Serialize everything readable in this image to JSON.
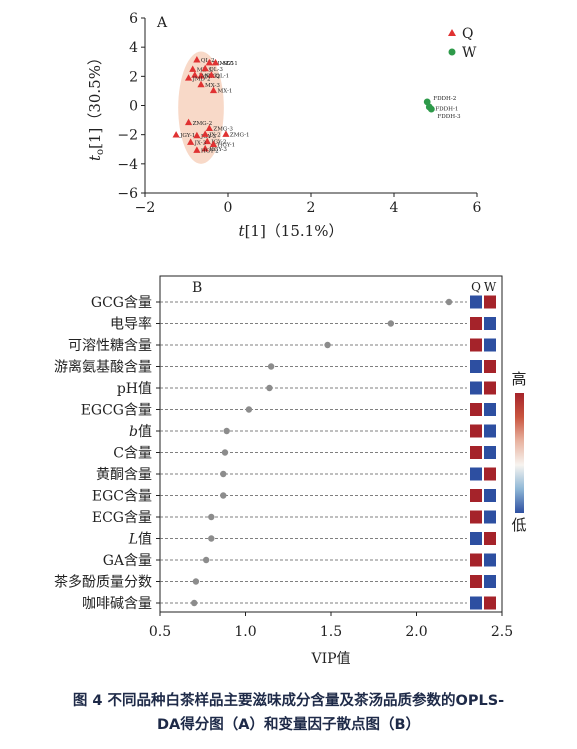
{
  "chart_data": [
    {
      "panel_label": "A",
      "type": "scatter",
      "xlabel_var": "t",
      "xlabel_idx": "[1]",
      "xlabel_pct": "（15.1%）",
      "ylabel_var": "t",
      "ylabel_sub": "o",
      "ylabel_idx": "[1]",
      "ylabel_pct": "（30.5%）",
      "xlim": [
        -2,
        6
      ],
      "ylim": [
        -6,
        6
      ],
      "xticks": [
        -2,
        0,
        2,
        4,
        6
      ],
      "yticks": [
        -6,
        -4,
        -2,
        0,
        2,
        4,
        6
      ],
      "ellipse": {
        "cx": -0.65,
        "cy": -0.15,
        "rx": 0.55,
        "ry": 3.85
      },
      "legend_position": "top-right",
      "series": [
        {
          "name": "Q",
          "color": "#e03232",
          "marker": "triangle",
          "points": [
            {
              "x": -0.75,
              "y": 3.15,
              "label": "QL-2"
            },
            {
              "x": -0.45,
              "y": 2.95,
              "label": "ZL-MZ-1"
            },
            {
              "x": -0.3,
              "y": 2.95,
              "label": "MZ-1"
            },
            {
              "x": -0.85,
              "y": 2.5,
              "label": "MZ-3"
            },
            {
              "x": -0.55,
              "y": 2.55,
              "label": "QL-3"
            },
            {
              "x": -0.8,
              "y": 2.1,
              "label": "JMD-3"
            },
            {
              "x": -0.65,
              "y": 2.05,
              "label": "MX-2"
            },
            {
              "x": -0.4,
              "y": 2.1,
              "label": "QL-1"
            },
            {
              "x": -0.95,
              "y": 1.9,
              "label": "JMD-2"
            },
            {
              "x": -0.65,
              "y": 1.45,
              "label": "MX-3"
            },
            {
              "x": -0.35,
              "y": 1.05,
              "label": "MX-1"
            },
            {
              "x": -0.95,
              "y": -1.15,
              "label": "ZMG-2"
            },
            {
              "x": -0.45,
              "y": -1.55,
              "label": "ZMG-3"
            },
            {
              "x": -0.05,
              "y": -1.95,
              "label": "ZMG-1"
            },
            {
              "x": -1.25,
              "y": -2.0,
              "label": "JGY-1"
            },
            {
              "x": -0.75,
              "y": -2.05,
              "label": "JGY-3"
            },
            {
              "x": -0.55,
              "y": -1.95,
              "label": "JX-2"
            },
            {
              "x": -0.5,
              "y": -2.45,
              "label": "JGY-2"
            },
            {
              "x": -0.9,
              "y": -2.5,
              "label": "JX-3"
            },
            {
              "x": -0.35,
              "y": -2.65,
              "label": "HGY-1"
            },
            {
              "x": -0.55,
              "y": -2.95,
              "label": "HGY-3"
            },
            {
              "x": -0.75,
              "y": -3.05,
              "label": "HGY-2"
            }
          ]
        },
        {
          "name": "W",
          "color": "#2e9a4a",
          "marker": "circle",
          "points": [
            {
              "x": 4.8,
              "y": 0.25,
              "label": "FDDH-2"
            },
            {
              "x": 4.85,
              "y": -0.1,
              "label": "FDDH-1"
            },
            {
              "x": 4.9,
              "y": -0.25,
              "label": "FDDH-3"
            }
          ]
        }
      ]
    },
    {
      "panel_label": "B",
      "type": "dot",
      "xlabel": "VIP值",
      "xlim": [
        0.5,
        2.5
      ],
      "xticks": [
        0.5,
        1.0,
        1.5,
        2.0,
        2.5
      ],
      "marker_color": "#8c8c8c",
      "heat_columns": [
        "Q",
        "W"
      ],
      "legend_high": "高",
      "legend_low": "低",
      "heat_colors": {
        "low": "#2d4fa1",
        "high": "#a5232a"
      },
      "gradient": [
        "#a5232a",
        "#c9553f",
        "#e8b3a0",
        "#f7f4f0",
        "#8fb7d6",
        "#2d4fa1"
      ],
      "items": [
        {
          "label": "GCG含量",
          "vip": 2.19,
          "heat": [
            "low",
            "high"
          ]
        },
        {
          "label": "电导率",
          "vip": 1.85,
          "heat": [
            "high",
            "low"
          ]
        },
        {
          "label": "可溶性糖含量",
          "vip": 1.48,
          "heat": [
            "high",
            "low"
          ]
        },
        {
          "label": "游离氨基酸含量",
          "vip": 1.15,
          "heat": [
            "low",
            "high"
          ]
        },
        {
          "label": "pH值",
          "vip": 1.14,
          "heat": [
            "low",
            "high"
          ]
        },
        {
          "label": "EGCG含量",
          "vip": 1.02,
          "heat": [
            "high",
            "low"
          ]
        },
        {
          "label": "b值",
          "label_italic": "b",
          "label_rest": "值",
          "vip": 0.89,
          "heat": [
            "high",
            "low"
          ]
        },
        {
          "label": "C含量",
          "vip": 0.88,
          "heat": [
            "high",
            "low"
          ]
        },
        {
          "label": "黄酮含量",
          "vip": 0.87,
          "heat": [
            "low",
            "high"
          ]
        },
        {
          "label": "EGC含量",
          "vip": 0.87,
          "heat": [
            "high",
            "low"
          ]
        },
        {
          "label": "ECG含量",
          "vip": 0.8,
          "heat": [
            "high",
            "low"
          ]
        },
        {
          "label": "L值",
          "label_italic": "L",
          "label_rest": "值",
          "vip": 0.8,
          "heat": [
            "low",
            "high"
          ]
        },
        {
          "label": "GA含量",
          "vip": 0.77,
          "heat": [
            "high",
            "low"
          ]
        },
        {
          "label": "茶多酚质量分数",
          "vip": 0.71,
          "heat": [
            "high",
            "low"
          ]
        },
        {
          "label": "咖啡碱含量",
          "vip": 0.7,
          "heat": [
            "low",
            "high"
          ]
        }
      ]
    }
  ],
  "caption": {
    "line1": "图 4    不同品种白茶样品主要滋味成分含量及茶汤品质参数的OPLS-",
    "line2": "DA得分图（A）和变量因子散点图（B）"
  }
}
